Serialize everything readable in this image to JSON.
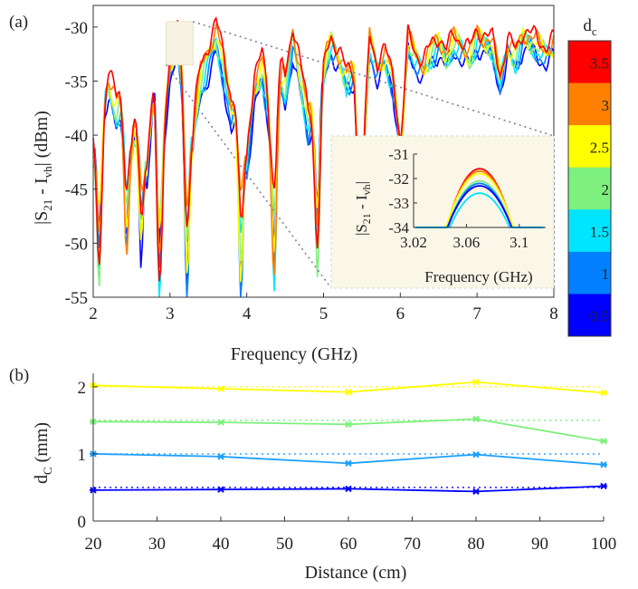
{
  "figure": {
    "panel_a_label": "(a)",
    "panel_b_label": "(b)"
  },
  "colorbar": {
    "title": "d",
    "title_sub": "c",
    "labels": [
      "3.5",
      "3",
      "2.5",
      "2",
      "1.5",
      "1",
      "0.5"
    ],
    "colors": [
      "#ff0000",
      "#ff8000",
      "#ffff00",
      "#7df07d",
      "#00e5ff",
      "#0080ff",
      "#0000ff"
    ]
  },
  "chart_data": [
    {
      "type": "line",
      "id": "panel-a",
      "xlabel": "Frequency (GHz)",
      "ylabel_main": "|S",
      "ylabel_sub1": "21",
      "ylabel_mid": " - I",
      "ylabel_sub2": "vh",
      "ylabel_end": "| (dBm)",
      "xlim": [
        2,
        8
      ],
      "ylim": [
        -55,
        -28
      ],
      "xticks": [
        2,
        3,
        4,
        5,
        6,
        7,
        8
      ],
      "yticks": [
        -30,
        -35,
        -40,
        -45,
        -50,
        -55
      ],
      "grid": false,
      "series": [
        {
          "name": "3.5",
          "color": "#ff0000"
        },
        {
          "name": "3",
          "color": "#ff8000"
        },
        {
          "name": "2.5",
          "color": "#ffff00"
        },
        {
          "name": "2",
          "color": "#7df07d"
        },
        {
          "name": "1.5",
          "color": "#00e5ff"
        },
        {
          "name": "1",
          "color": "#0080ff"
        },
        {
          "name": "0.5",
          "color": "#0000ff"
        }
      ],
      "envelope": {
        "x": [
          2.0,
          2.1,
          2.2,
          2.3,
          2.4,
          2.5,
          2.6,
          2.7,
          2.8,
          2.9,
          3.0,
          3.1,
          3.2,
          3.3,
          3.4,
          3.5,
          3.6,
          3.7,
          3.8,
          3.9,
          4.0,
          4.1,
          4.2,
          4.3,
          4.4,
          4.5,
          4.6,
          4.7,
          4.8,
          4.9,
          5.0,
          5.1,
          5.2,
          5.3,
          5.4,
          5.5,
          5.6,
          5.7,
          5.8,
          5.9,
          6.0,
          6.1,
          6.2,
          6.3,
          6.4,
          6.5,
          6.6,
          6.7,
          6.8,
          6.9,
          7.0,
          7.1,
          7.2,
          7.3,
          7.4,
          7.5,
          7.6,
          7.7,
          7.8,
          7.9,
          8.0
        ],
        "y": [
          -41,
          -37,
          -35.5,
          -38,
          -36,
          -41,
          -37,
          -43,
          -35,
          -40,
          -34,
          -31.5,
          -36,
          -40,
          -35,
          -33,
          -31,
          -34,
          -38,
          -36,
          -42,
          -36,
          -34,
          -38,
          -33.5,
          -36,
          -31,
          -35,
          -39,
          -36,
          -34,
          -31.5,
          -33,
          -35,
          -34,
          -45,
          -31.5,
          -34,
          -33,
          -35,
          -40,
          -31.5,
          -33,
          -34,
          -32.5,
          -31.5,
          -33,
          -31.5,
          -32,
          -33,
          -31,
          -31.5,
          -32,
          -35,
          -32,
          -33,
          -31,
          -31.5,
          -32,
          -32.5,
          -32
        ]
      },
      "dips": [
        {
          "x": 2.08,
          "y": -54
        },
        {
          "x": 2.43,
          "y": -51
        },
        {
          "x": 2.62,
          "y": -51
        },
        {
          "x": 2.86,
          "y": -55
        },
        {
          "x": 3.22,
          "y": -55
        },
        {
          "x": 3.92,
          "y": -55
        },
        {
          "x": 4.36,
          "y": -55
        },
        {
          "x": 4.92,
          "y": -53
        },
        {
          "x": 5.46,
          "y": -46.5
        },
        {
          "x": 6.02,
          "y": -41
        }
      ],
      "zoom_box": {
        "x": [
          2.95,
          3.3
        ],
        "y": [
          -33.5,
          -29.5
        ]
      },
      "inset": {
        "xlabel": "Frequency (GHz)",
        "ylabel_main": "|S",
        "ylabel_sub1": "21",
        "ylabel_mid": " - I",
        "ylabel_sub2": "vh",
        "ylabel_end": "|",
        "xlim": [
          3.02,
          3.12
        ],
        "ylim": [
          -34,
          -31
        ],
        "xticks": [
          3.02,
          3.06,
          3.1
        ],
        "xtick_labels": [
          "3.02",
          "3.06",
          "3.1"
        ],
        "yticks": [
          -31,
          -32,
          -33,
          -34
        ],
        "peaks": [
          {
            "name": "3.5",
            "x": 3.07,
            "y": -31.6,
            "color": "#ff0000"
          },
          {
            "name": "3",
            "x": 3.07,
            "y": -31.7,
            "color": "#ff8000"
          },
          {
            "name": "2.5",
            "x": 3.07,
            "y": -31.8,
            "color": "#ffff00"
          },
          {
            "name": "2",
            "x": 3.07,
            "y": -32.1,
            "color": "#7df07d"
          },
          {
            "name": "1",
            "x": 3.07,
            "y": -32.2,
            "color": "#0080ff"
          },
          {
            "name": "0.5",
            "x": 3.07,
            "y": -32.3,
            "color": "#0000ff"
          },
          {
            "name": "1.5",
            "x": 3.07,
            "y": -32.6,
            "color": "#00e5ff"
          }
        ]
      }
    },
    {
      "type": "line",
      "id": "panel-b",
      "xlabel": "Distance (cm)",
      "ylabel_main": "d",
      "ylabel_sub": "C",
      "ylabel_end": " (mm)",
      "xlim": [
        20,
        100
      ],
      "ylim": [
        0,
        2.2
      ],
      "xticks": [
        20,
        30,
        40,
        50,
        60,
        70,
        80,
        90,
        100
      ],
      "yticks": [
        0,
        1,
        2
      ],
      "grid": false,
      "x": [
        20,
        40,
        60,
        80,
        100
      ],
      "series": [
        {
          "name": "2",
          "color": "#ffff00",
          "reference": 2.0,
          "values": [
            2.02,
            1.97,
            1.92,
            2.07,
            1.91
          ]
        },
        {
          "name": "1.5",
          "color": "#7df07d",
          "reference": 1.5,
          "values": [
            1.48,
            1.47,
            1.44,
            1.52,
            1.19
          ]
        },
        {
          "name": "1",
          "color": "#1ea0ff",
          "reference": 1.0,
          "values": [
            1.0,
            0.96,
            0.86,
            0.99,
            0.84
          ]
        },
        {
          "name": "0.5",
          "color": "#0000ff",
          "reference": 0.5,
          "values": [
            0.46,
            0.47,
            0.48,
            0.44,
            0.52
          ]
        }
      ]
    }
  ]
}
